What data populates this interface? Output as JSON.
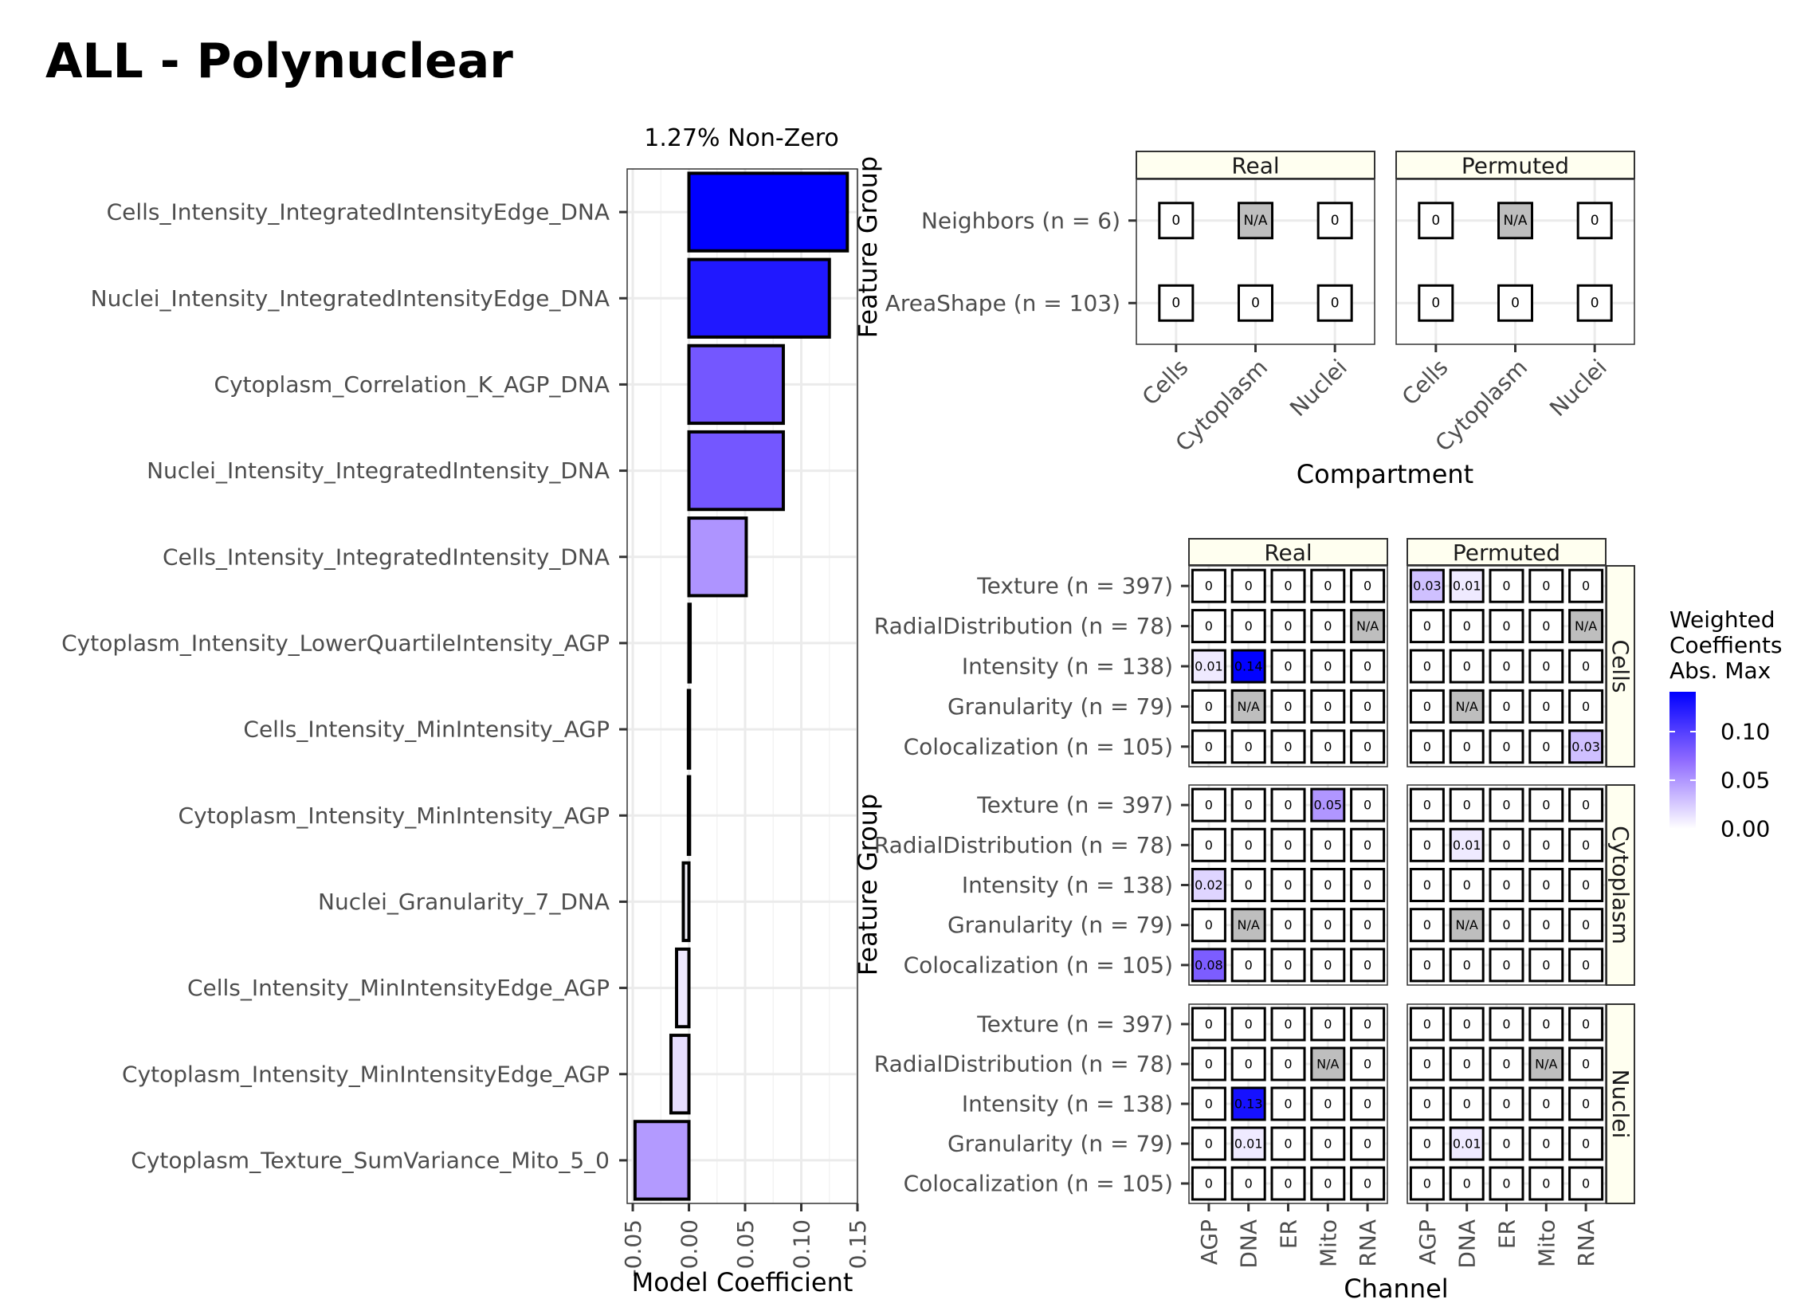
{
  "title": "ALL - Polynuclear",
  "colors": {
    "high": "#0000ff",
    "mid": "#8f6bff",
    "low": "#ffffff",
    "na": "#bebebe",
    "strip": "#fffff0",
    "grid": "#ebebeb"
  },
  "chart_data": [
    {
      "type": "bar",
      "orientation": "horizontal",
      "title": "1.27% Non-Zero",
      "xlabel": "Model Coefficient",
      "xlim": [
        -0.055,
        0.15
      ],
      "xticks": [
        "-0.05",
        "0.00",
        "0.05",
        "0.10",
        "0.15"
      ],
      "xtick_values": [
        -0.05,
        0.0,
        0.05,
        0.1,
        0.15
      ],
      "grid": true,
      "categories": [
        "Cells_Intensity_IntegratedIntensityEdge_DNA",
        "Nuclei_Intensity_IntegratedIntensityEdge_DNA",
        "Cytoplasm_Correlation_K_AGP_DNA",
        "Nuclei_Intensity_IntegratedIntensity_DNA",
        "Cells_Intensity_IntegratedIntensity_DNA",
        "Cytoplasm_Intensity_LowerQuartileIntensity_AGP",
        "Cells_Intensity_MinIntensity_AGP",
        "Cytoplasm_Intensity_MinIntensity_AGP",
        "Nuclei_Granularity_7_DNA",
        "Cells_Intensity_MinIntensityEdge_AGP",
        "Cytoplasm_Intensity_MinIntensityEdge_AGP",
        "Cytoplasm_Texture_SumVariance_Mito_5_0"
      ],
      "values": [
        0.141,
        0.125,
        0.084,
        0.084,
        0.051,
        0.0005,
        -0.0005,
        -0.0005,
        -0.005,
        -0.011,
        -0.016,
        -0.048
      ]
    },
    {
      "type": "heatmap",
      "xlabel": "Compartment",
      "ylabel": "Feature Group",
      "facets": [
        "Real",
        "Permuted"
      ],
      "x": [
        "Cells",
        "Cytoplasm",
        "Nuclei"
      ],
      "y": [
        "Neighbors (n = 6)",
        "AreaShape (n = 103)"
      ],
      "values": {
        "Real": [
          [
            "0",
            "N/A",
            "0"
          ],
          [
            "0",
            "0",
            "0"
          ]
        ],
        "Permuted": [
          [
            "0",
            "N/A",
            "0"
          ],
          [
            "0",
            "0",
            "0"
          ]
        ]
      }
    },
    {
      "type": "heatmap",
      "xlabel": "Channel",
      "ylabel": "Feature Group",
      "facets": [
        "Real",
        "Permuted"
      ],
      "row_facets": [
        "Cells",
        "Cytoplasm",
        "Nuclei"
      ],
      "x": [
        "AGP",
        "DNA",
        "ER",
        "Mito",
        "RNA"
      ],
      "y": [
        "Texture (n = 397)",
        "RadialDistribution (n = 78)",
        "Intensity (n = 138)",
        "Granularity (n = 79)",
        "Colocalization (n = 105)"
      ],
      "values": {
        "Cells": {
          "Real": [
            [
              "0",
              "0",
              "0",
              "0",
              "0"
            ],
            [
              "0",
              "0",
              "0",
              "0",
              "N/A"
            ],
            [
              "0.01",
              "0.14",
              "0",
              "0",
              "0"
            ],
            [
              "0",
              "N/A",
              "0",
              "0",
              "0"
            ],
            [
              "0",
              "0",
              "0",
              "0",
              "0"
            ]
          ],
          "Permuted": [
            [
              "0.03",
              "0.01",
              "0",
              "0",
              "0"
            ],
            [
              "0",
              "0",
              "0",
              "0",
              "N/A"
            ],
            [
              "0",
              "0",
              "0",
              "0",
              "0"
            ],
            [
              "0",
              "N/A",
              "0",
              "0",
              "0"
            ],
            [
              "0",
              "0",
              "0",
              "0",
              "0.03"
            ]
          ]
        },
        "Cytoplasm": {
          "Real": [
            [
              "0",
              "0",
              "0",
              "0.05",
              "0"
            ],
            [
              "0",
              "0",
              "0",
              "0",
              "0"
            ],
            [
              "0.02",
              "0",
              "0",
              "0",
              "0"
            ],
            [
              "0",
              "N/A",
              "0",
              "0",
              "0"
            ],
            [
              "0.08",
              "0",
              "0",
              "0",
              "0"
            ]
          ],
          "Permuted": [
            [
              "0",
              "0",
              "0",
              "0",
              "0"
            ],
            [
              "0",
              "0.01",
              "0",
              "0",
              "0"
            ],
            [
              "0",
              "0",
              "0",
              "0",
              "0"
            ],
            [
              "0",
              "N/A",
              "0",
              "0",
              "0"
            ],
            [
              "0",
              "0",
              "0",
              "0",
              "0"
            ]
          ]
        },
        "Nuclei": {
          "Real": [
            [
              "0",
              "0",
              "0",
              "0",
              "0"
            ],
            [
              "0",
              "0",
              "0",
              "N/A",
              "0"
            ],
            [
              "0",
              "0.13",
              "0",
              "0",
              "0"
            ],
            [
              "0",
              "0.01",
              "0",
              "0",
              "0"
            ],
            [
              "0",
              "0",
              "0",
              "0",
              "0"
            ]
          ],
          "Permuted": [
            [
              "0",
              "0",
              "0",
              "0",
              "0"
            ],
            [
              "0",
              "0",
              "0",
              "N/A",
              "0"
            ],
            [
              "0",
              "0",
              "0",
              "0",
              "0"
            ],
            [
              "0",
              "0.01",
              "0",
              "0",
              "0"
            ],
            [
              "0",
              "0",
              "0",
              "0",
              "0"
            ]
          ]
        }
      },
      "legend": {
        "title": [
          "Weighted",
          "Coeffients",
          "Abs. Max"
        ],
        "ticks": [
          "0.00",
          "0.05",
          "0.10"
        ],
        "tick_values": [
          0.0,
          0.05,
          0.1
        ],
        "range": [
          0,
          0.141
        ]
      }
    }
  ]
}
